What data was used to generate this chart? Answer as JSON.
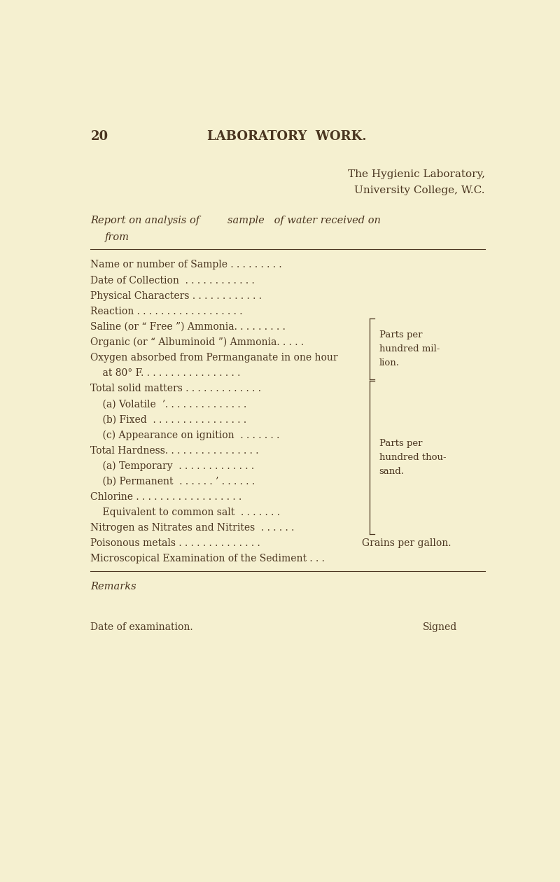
{
  "bg_color": "#f5f0d0",
  "text_color": "#4a3520",
  "page_number": "20",
  "page_header": "LABORATORY  WORK.",
  "institution_line1": "The Hygienic Laboratory,",
  "institution_line2": "University College, W.C.",
  "report_line1": "Report on analysis of",
  "report_line1_mid": "sample   of water received on",
  "report_line2": "from",
  "rows": [
    {
      "text": "Name or number of Sample . . . . . . . . .",
      "indent": 0
    },
    {
      "text": "Date of Collection  . . . . . . . . . . . .",
      "indent": 0
    },
    {
      "text": "Physical Characters . . . . . . . . . . . .",
      "indent": 0
    },
    {
      "text": "Reaction . . . . . . . . . . . . . . . . . .",
      "indent": 0
    },
    {
      "text": "Saline (or “ Free ”) Ammonia. . . . . . . . .",
      "indent": 0,
      "bracket_group": "A"
    },
    {
      "text": "Organic (or “ Albuminoid ”) Ammonia. . . . .",
      "indent": 0,
      "bracket_group": "A"
    },
    {
      "text": "Oxygen absorbed from Permanganate in one hour",
      "indent": 0,
      "bracket_group": "A"
    },
    {
      "text": "    at 80° F. . . . . . . . . . . . . . . . .",
      "indent": 0,
      "bracket_group": "A"
    },
    {
      "text": "Total solid matters . . . . . . . . . . . . .",
      "indent": 0,
      "bracket_group": "B"
    },
    {
      "text": "    (a) Volatile  ʼ. . . . . . . . . . . . . .",
      "indent": 1,
      "bracket_group": "B"
    },
    {
      "text": "    (b) Fixed  . . . . . . . . . . . . . . . .",
      "indent": 1,
      "bracket_group": "B"
    },
    {
      "text": "    (c) Appearance on ignition  . . . . . . .",
      "indent": 1,
      "bracket_group": "B"
    },
    {
      "text": "Total Hardness. . . . . . . . . . . . . . . .",
      "indent": 0,
      "bracket_group": "B"
    },
    {
      "text": "    (a) Temporary  . . . . . . . . . . . . .",
      "indent": 1,
      "bracket_group": "B"
    },
    {
      "text": "    (b) Permanent  . . . . . . ’ . . . . . .",
      "indent": 1,
      "bracket_group": "B"
    },
    {
      "text": "Chlorine . . . . . . . . . . . . . . . . . .",
      "indent": 0,
      "bracket_group": "B"
    },
    {
      "text": "    Equivalent to common salt  . . . . . . .",
      "indent": 1,
      "bracket_group": "B"
    },
    {
      "text": "Nitrogen as Nitrates and Nitrites  . . . . . .",
      "indent": 0,
      "bracket_group": "B"
    },
    {
      "text": "Poisonous metals",
      "indent": 0,
      "grains": true
    },
    {
      "text": "Microscopical Examination of the Sediment . . .",
      "indent": 0
    }
  ],
  "bracket_A_label": [
    "Parts per",
    "hundred mil-",
    "lion."
  ],
  "bracket_B_label": [
    "Parts per",
    "hundred thou-",
    "sand."
  ],
  "grains_dots": ". . . . . . . . . . . . . .",
  "grains_label": "Grains per gallon.",
  "remarks_label": "Remarks",
  "date_label": "Date of examination.",
  "signed_label": "Signed"
}
